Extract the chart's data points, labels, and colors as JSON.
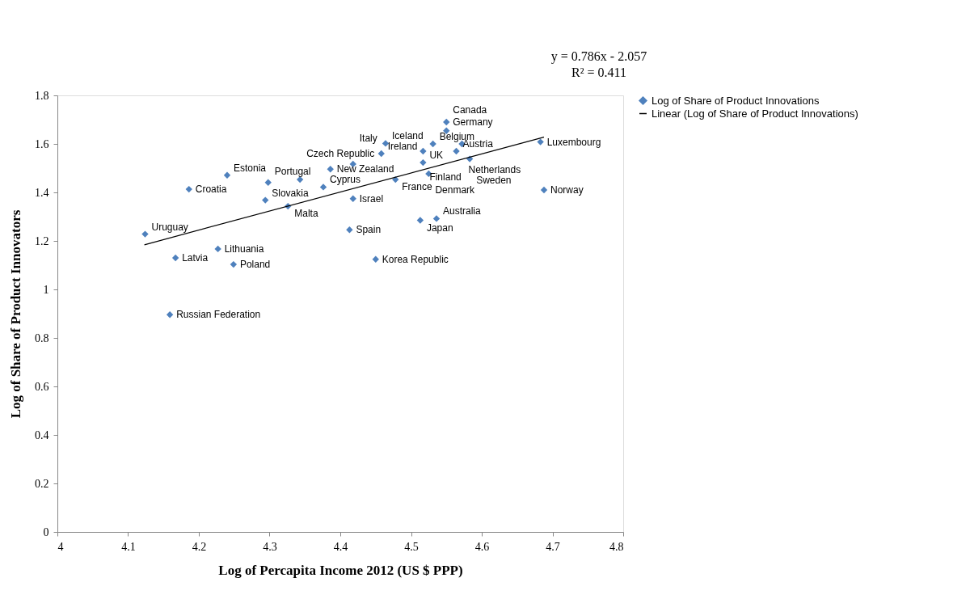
{
  "chart_data": {
    "type": "scatter",
    "xlabel": "Log of Percapita Income 2012 (US $ PPP)",
    "ylabel": "Log of Share of Product Innovators",
    "xlim": [
      4,
      4.8
    ],
    "xticks": [
      4,
      4.1,
      4.2,
      4.3,
      4.4,
      4.5,
      4.6,
      4.7,
      4.8
    ],
    "ylim": [
      0,
      1.8
    ],
    "yticks": [
      0,
      0.2,
      0.4,
      0.6,
      0.8,
      1,
      1.2,
      1.4,
      1.6,
      1.8
    ],
    "grid": false,
    "legend": "right",
    "marker": "diamond",
    "series": [
      {
        "name": "Log of Share of Product Innovations",
        "color": "#4f81bd",
        "x": [
          4.124,
          4.186,
          4.24,
          4.294,
          4.298,
          4.326,
          4.343,
          4.376,
          4.386,
          4.418,
          4.418,
          4.413,
          4.227,
          4.167,
          4.249,
          4.45,
          4.464,
          4.458,
          4.55,
          4.55,
          4.517,
          4.531,
          4.572,
          4.564,
          4.583,
          4.517,
          4.525,
          4.478,
          4.683,
          4.688,
          4.513,
          4.536,
          4.159
        ],
        "values": [
          1.228,
          1.413,
          1.471,
          1.368,
          1.441,
          1.343,
          1.453,
          1.422,
          1.496,
          1.517,
          1.374,
          1.246,
          1.167,
          1.13,
          1.103,
          1.124,
          1.602,
          1.56,
          1.69,
          1.654,
          1.57,
          1.6,
          1.6,
          1.57,
          1.538,
          1.523,
          1.477,
          1.453,
          1.608,
          1.41,
          1.285,
          1.292,
          0.896
        ]
      },
      {
        "name": "Linear (Log of Share of Product Innovations)",
        "type": "line",
        "color": "#000000",
        "marker": "none",
        "line_style": "solid",
        "x": [
          4.123,
          4.688
        ],
        "values": [
          1.184,
          1.628
        ]
      }
    ],
    "annotations": [
      "y = 0.786x - 2.057",
      "R² = 0.411",
      {
        "text": "Uruguay",
        "x": 4.124,
        "y": 1.228
      },
      {
        "text": "Croatia",
        "x": 4.186,
        "y": 1.413
      },
      {
        "text": "Estonia",
        "x": 4.24,
        "y": 1.471
      },
      {
        "text": "Slovakia",
        "x": 4.294,
        "y": 1.368
      },
      {
        "text": "Portugal",
        "x": 4.298,
        "y": 1.441
      },
      {
        "text": "Malta",
        "x": 4.326,
        "y": 1.343
      },
      {
        "text": "Czech Republic",
        "x": 4.343,
        "y": 1.453
      },
      {
        "text": "Cyprus",
        "x": 4.376,
        "y": 1.422
      },
      {
        "text": "New Zealand",
        "x": 4.386,
        "y": 1.496
      },
      {
        "text": "Italy",
        "x": 4.418,
        "y": 1.517
      },
      {
        "text": "Israel",
        "x": 4.418,
        "y": 1.374
      },
      {
        "text": "Spain",
        "x": 4.413,
        "y": 1.246
      },
      {
        "text": "Lithuania",
        "x": 4.227,
        "y": 1.167
      },
      {
        "text": "Latvia",
        "x": 4.167,
        "y": 1.13
      },
      {
        "text": "Poland",
        "x": 4.249,
        "y": 1.103
      },
      {
        "text": "Korea Republic",
        "x": 4.45,
        "y": 1.124
      },
      {
        "text": "Iceland",
        "x": 4.464,
        "y": 1.602
      },
      {
        "text": "Ireland",
        "x": 4.458,
        "y": 1.56
      },
      {
        "text": "Germany",
        "x": 4.55,
        "y": 1.69
      },
      {
        "text": "Canada",
        "x": 4.55,
        "y": 1.654
      },
      {
        "text": "Finland",
        "x": 4.517,
        "y": 1.57
      },
      {
        "text": "Belgium",
        "x": 4.531,
        "y": 1.6
      },
      {
        "text": "Netherlands",
        "x": 4.572,
        "y": 1.6
      },
      {
        "text": "Austria",
        "x": 4.564,
        "y": 1.57
      },
      {
        "text": "Sweden",
        "x": 4.583,
        "y": 1.538
      },
      {
        "text": "UK",
        "x": 4.517,
        "y": 1.523
      },
      {
        "text": "Denmark",
        "x": 4.525,
        "y": 1.477
      },
      {
        "text": "France",
        "x": 4.478,
        "y": 1.453
      },
      {
        "text": "Luxembourg",
        "x": 4.683,
        "y": 1.608
      },
      {
        "text": "Norway",
        "x": 4.688,
        "y": 1.41
      },
      {
        "text": "Japan",
        "x": 4.513,
        "y": 1.285
      },
      {
        "text": "Australia",
        "x": 4.536,
        "y": 1.292
      },
      {
        "text": "Russian Federation",
        "x": 4.159,
        "y": 0.896
      }
    ]
  }
}
